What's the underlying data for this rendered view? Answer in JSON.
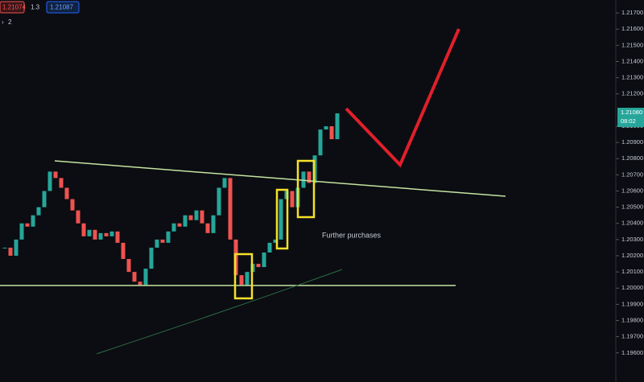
{
  "header": {
    "bid": "1.21074",
    "spread": "1.3",
    "ask": "1.21087",
    "layers": "2"
  },
  "annotation": "Further purchases",
  "current_price": {
    "price": "1.21080",
    "countdown": "08:02"
  },
  "chart_data": {
    "type": "candlestick",
    "color_up": "#26a69a",
    "color_down": "#ef5350",
    "ylim": [
      1.1942,
      1.2178
    ],
    "yticks": [
      {
        "value": 1.217,
        "label": "1.21700"
      },
      {
        "value": 1.216,
        "label": "1.21600"
      },
      {
        "value": 1.215,
        "label": "1.21500"
      },
      {
        "value": 1.214,
        "label": "1.21400"
      },
      {
        "value": 1.213,
        "label": "1.21300"
      },
      {
        "value": 1.212,
        "label": "1.21200"
      },
      {
        "value": 1.21,
        "label": "1.21000"
      },
      {
        "value": 1.209,
        "label": "1.20900"
      },
      {
        "value": 1.208,
        "label": "1.20800"
      },
      {
        "value": 1.207,
        "label": "1.20700"
      },
      {
        "value": 1.206,
        "label": "1.20600"
      },
      {
        "value": 1.205,
        "label": "1.20500"
      },
      {
        "value": 1.204,
        "label": "1.20400"
      },
      {
        "value": 1.203,
        "label": "1.20300"
      },
      {
        "value": 1.202,
        "label": "1.20200"
      },
      {
        "value": 1.201,
        "label": "1.20100"
      },
      {
        "value": 1.2,
        "label": "1.20000"
      },
      {
        "value": 1.199,
        "label": "1.19900"
      },
      {
        "value": 1.198,
        "label": "1.19800"
      },
      {
        "value": 1.197,
        "label": "1.19700"
      },
      {
        "value": 1.196,
        "label": "1.19600"
      }
    ],
    "closes": [
      1.2025,
      1.202,
      1.203,
      1.204,
      1.2038,
      1.2045,
      1.205,
      1.206,
      1.2072,
      1.2068,
      1.2062,
      1.2055,
      1.2048,
      1.204,
      1.2032,
      1.2036,
      1.203,
      1.2034,
      1.2032,
      1.2035,
      1.2028,
      1.2018,
      1.201,
      1.2004,
      1.2002,
      1.2012,
      1.2025,
      1.203,
      1.2028,
      1.2035,
      1.204,
      1.2038,
      1.2045,
      1.2042,
      1.2048,
      1.204,
      1.2034,
      1.2045,
      1.2062,
      1.2068,
      1.203,
      1.2008,
      1.2002,
      1.201,
      1.2015,
      1.2013,
      1.2022,
      1.2028,
      1.203,
      1.2055,
      1.206,
      1.205,
      1.2062,
      1.2072,
      1.2065,
      1.2082,
      1.2098,
      1.21,
      1.2092,
      1.2108
    ]
  }
}
